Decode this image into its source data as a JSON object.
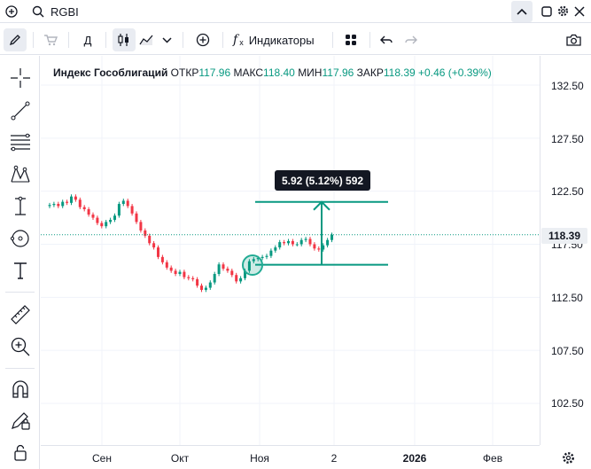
{
  "symbol": "RGBI",
  "toolbar": {
    "interval": "Д",
    "indicators_label": "Индикаторы"
  },
  "legend": {
    "name": "Индекс Гособлигаций",
    "open_label": "ОТКР",
    "open": "117.96",
    "high_label": "МАКС",
    "high": "118.40",
    "low_label": "МИН",
    "low": "117.96",
    "close_label": "ЗАКР",
    "close": "118.39",
    "change": "+0.46 (+0.39%)"
  },
  "price_axis": {
    "labels": [
      "132.50",
      "127.50",
      "122.50",
      "117.50",
      "112.50",
      "107.50",
      "102.50"
    ],
    "last_price": "118.39"
  },
  "time_axis": {
    "labels": [
      "Сен",
      "Окт",
      "Ноя",
      "2",
      "2026",
      "Фев"
    ]
  },
  "measure_tooltip": "5.92 (5.12%) 592",
  "colors": {
    "up": "#089981",
    "down": "#f23645",
    "measure": "#089981",
    "last_line": "#089981"
  },
  "chart_data": {
    "type": "candlestick",
    "ylim": [
      100.0,
      135.0
    ],
    "yticks": [
      132.5,
      127.5,
      122.5,
      117.5,
      112.5,
      107.5,
      102.5
    ],
    "closes": [
      121.2,
      121.3,
      121.1,
      121.5,
      121.4,
      122.0,
      121.7,
      121.0,
      120.8,
      120.3,
      120.0,
      119.5,
      119.2,
      119.6,
      119.8,
      120.2,
      121.3,
      121.6,
      121.1,
      120.4,
      119.6,
      118.8,
      118.3,
      117.6,
      117.2,
      116.3,
      115.8,
      115.3,
      115.0,
      114.7,
      114.9,
      114.4,
      114.3,
      114.2,
      113.6,
      113.2,
      113.4,
      113.9,
      114.7,
      115.6,
      115.2,
      115.0,
      114.6,
      114.0,
      114.3,
      115.0,
      115.9,
      116.1,
      116.2,
      116.3,
      116.4,
      116.9,
      117.2,
      117.7,
      117.6,
      117.8,
      117.5,
      117.5,
      117.9,
      118.0,
      117.5,
      117.1,
      117.0,
      117.4,
      117.9,
      118.4
    ],
    "measure": {
      "from": 115.57,
      "to": 121.49,
      "change": 5.92,
      "percent": 5.12,
      "bars": 592
    }
  }
}
